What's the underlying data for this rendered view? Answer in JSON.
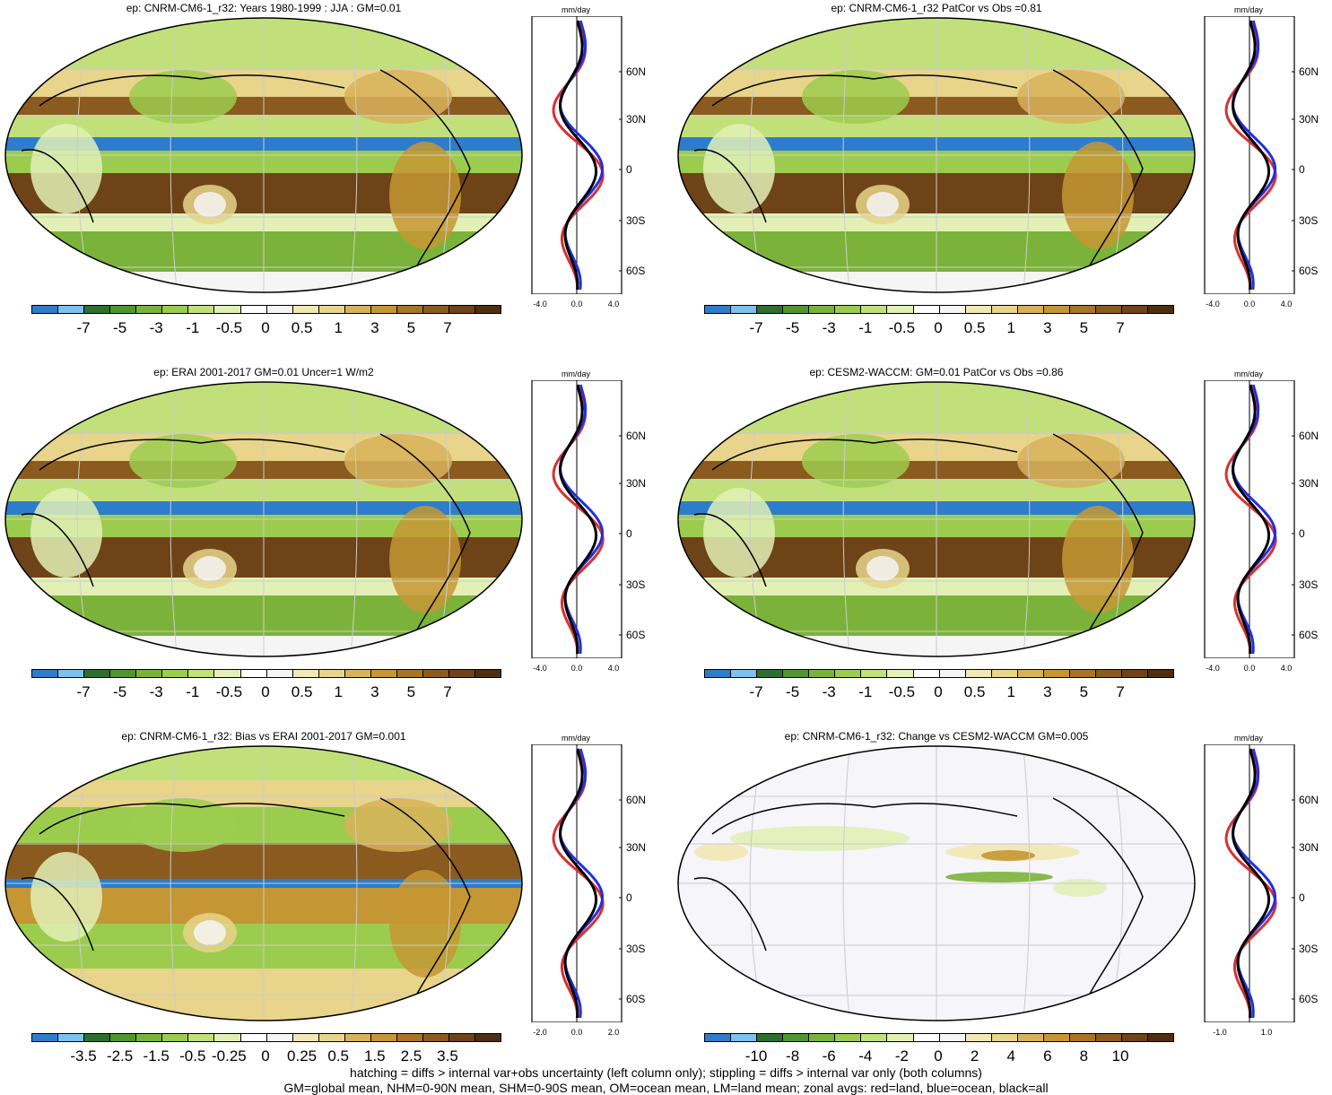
{
  "colors": {
    "palette": [
      "#2d7dcc",
      "#7ec0ee",
      "#2e6e2e",
      "#4f962e",
      "#7bb33a",
      "#9ccc4e",
      "#c1e07a",
      "#e2f0b6",
      "#ffffff",
      "#f5f5f5",
      "#f2e8b4",
      "#e8d48a",
      "#d8b25a",
      "#c59634",
      "#a87426",
      "#8a5a1e",
      "#6e4318",
      "#4f2d0f"
    ],
    "land": "#d93030",
    "ocean": "#2030e0",
    "all": "#000000"
  },
  "panels": [
    {
      "title": "ep: CNRM-CM6-1_r32: Years 1980-1999 : JJA : GM=0.01",
      "cbar_labels": [
        "-7",
        "-5",
        "-3",
        "-1",
        "-0.5",
        "0",
        "0.5",
        "1",
        "3",
        "5",
        "7"
      ],
      "unit": "mm/day",
      "lat_labels": [
        "60N",
        "30N",
        "0",
        "30S",
        "60S"
      ],
      "x_ticks": [
        "-4.0",
        "0.0",
        "4.0"
      ],
      "style": "mean"
    },
    {
      "title": "ep: CNRM-CM6-1_r32 PatCor vs Obs =0.81",
      "cbar_labels": [
        "-7",
        "-5",
        "-3",
        "-1",
        "-0.5",
        "0",
        "0.5",
        "1",
        "3",
        "5",
        "7"
      ],
      "unit": "mm/day",
      "lat_labels": [
        "60N",
        "30N",
        "0",
        "30S",
        "60S"
      ],
      "x_ticks": [
        "-4.0",
        "0.0",
        "4.0"
      ],
      "style": "mean"
    },
    {
      "title": "ep: ERAI 2001-2017 GM=0.01 Uncer=1 W/m2",
      "cbar_labels": [
        "-7",
        "-5",
        "-3",
        "-1",
        "-0.5",
        "0",
        "0.5",
        "1",
        "3",
        "5",
        "7"
      ],
      "unit": "mm/day",
      "lat_labels": [
        "60N",
        "30N",
        "0",
        "30S",
        "60S"
      ],
      "x_ticks": [
        "-4.0",
        "0.0",
        "4.0"
      ],
      "style": "mean"
    },
    {
      "title": "ep: CESM2-WACCM: GM=0.01 PatCor vs Obs =0.86",
      "cbar_labels": [
        "-7",
        "-5",
        "-3",
        "-1",
        "-0.5",
        "0",
        "0.5",
        "1",
        "3",
        "5",
        "7"
      ],
      "unit": "mm/day",
      "lat_labels": [
        "60N",
        "30N",
        "0",
        "30S",
        "60S"
      ],
      "x_ticks": [
        "-4.0",
        "0.0",
        "4.0"
      ],
      "style": "mean"
    },
    {
      "title": "ep: CNRM-CM6-1_r32: Bias vs ERAI 2001-2017 GM=0.001",
      "cbar_labels": [
        "-3.5",
        "-2.5",
        "-1.5",
        "-0.5",
        "-0.25",
        "0",
        "0.25",
        "0.5",
        "1.5",
        "2.5",
        "3.5"
      ],
      "unit": "mm/day",
      "lat_labels": [
        "60N",
        "30N",
        "0",
        "30S",
        "60S"
      ],
      "x_ticks": [
        "-2.0",
        "0.0",
        "2.0"
      ],
      "style": "bias"
    },
    {
      "title": "ep: CNRM-CM6-1_r32: Change vs CESM2-WACCM GM=0.005",
      "cbar_labels": [
        "-10",
        "-8",
        "-6",
        "-4",
        "-2",
        "0",
        "2",
        "4",
        "6",
        "8",
        "10"
      ],
      "unit": "mm/day",
      "lat_labels": [
        "60N",
        "30N",
        "0",
        "30S",
        "60S"
      ],
      "x_ticks": [
        "-1.0",
        "1.0"
      ],
      "style": "change"
    }
  ],
  "footer": {
    "line1": "hatching = diffs > internal var+obs uncertainty (left column only); stippling = diffs > internal var only (both columns)",
    "line2": "GM=global mean, NHM=0-90N mean, SHM=0-90S mean, OM=ocean mean, LM=land mean; zonal avgs: red=land, blue=ocean, black=all"
  }
}
